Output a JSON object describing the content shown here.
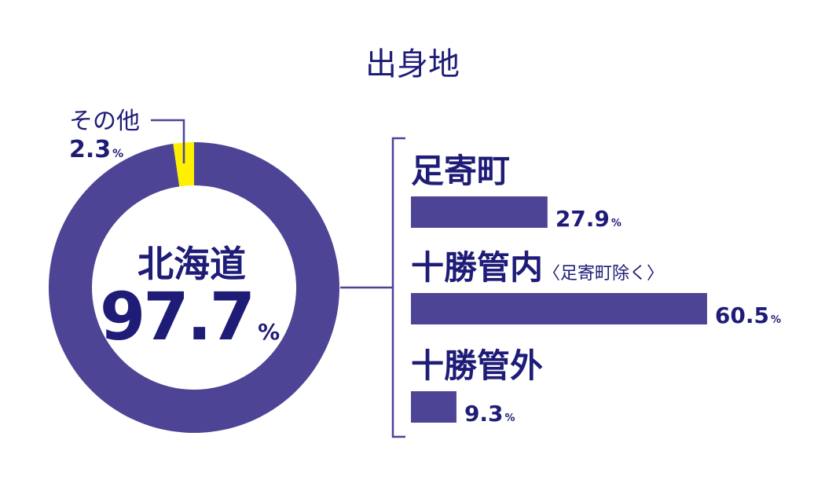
{
  "chart_data": [
    {
      "type": "pie",
      "variant": "donut",
      "title": "出身地",
      "slices": [
        {
          "label": "北海道",
          "value": 97.7,
          "unit": "%",
          "color": "#4d4496"
        },
        {
          "label": "その他",
          "value": 2.3,
          "unit": "%",
          "color": "#fff000"
        }
      ]
    },
    {
      "type": "bar",
      "orientation": "horizontal",
      "categories": [
        "足寄町",
        "十勝管内",
        "十勝管外"
      ],
      "category_notes": [
        "",
        "〈足寄町除く〉",
        ""
      ],
      "values": [
        27.9,
        60.5,
        9.3
      ],
      "unit": "%",
      "color": "#4d4496"
    }
  ],
  "colors": {
    "text": "#1f1c78",
    "line": "#4d4496"
  }
}
